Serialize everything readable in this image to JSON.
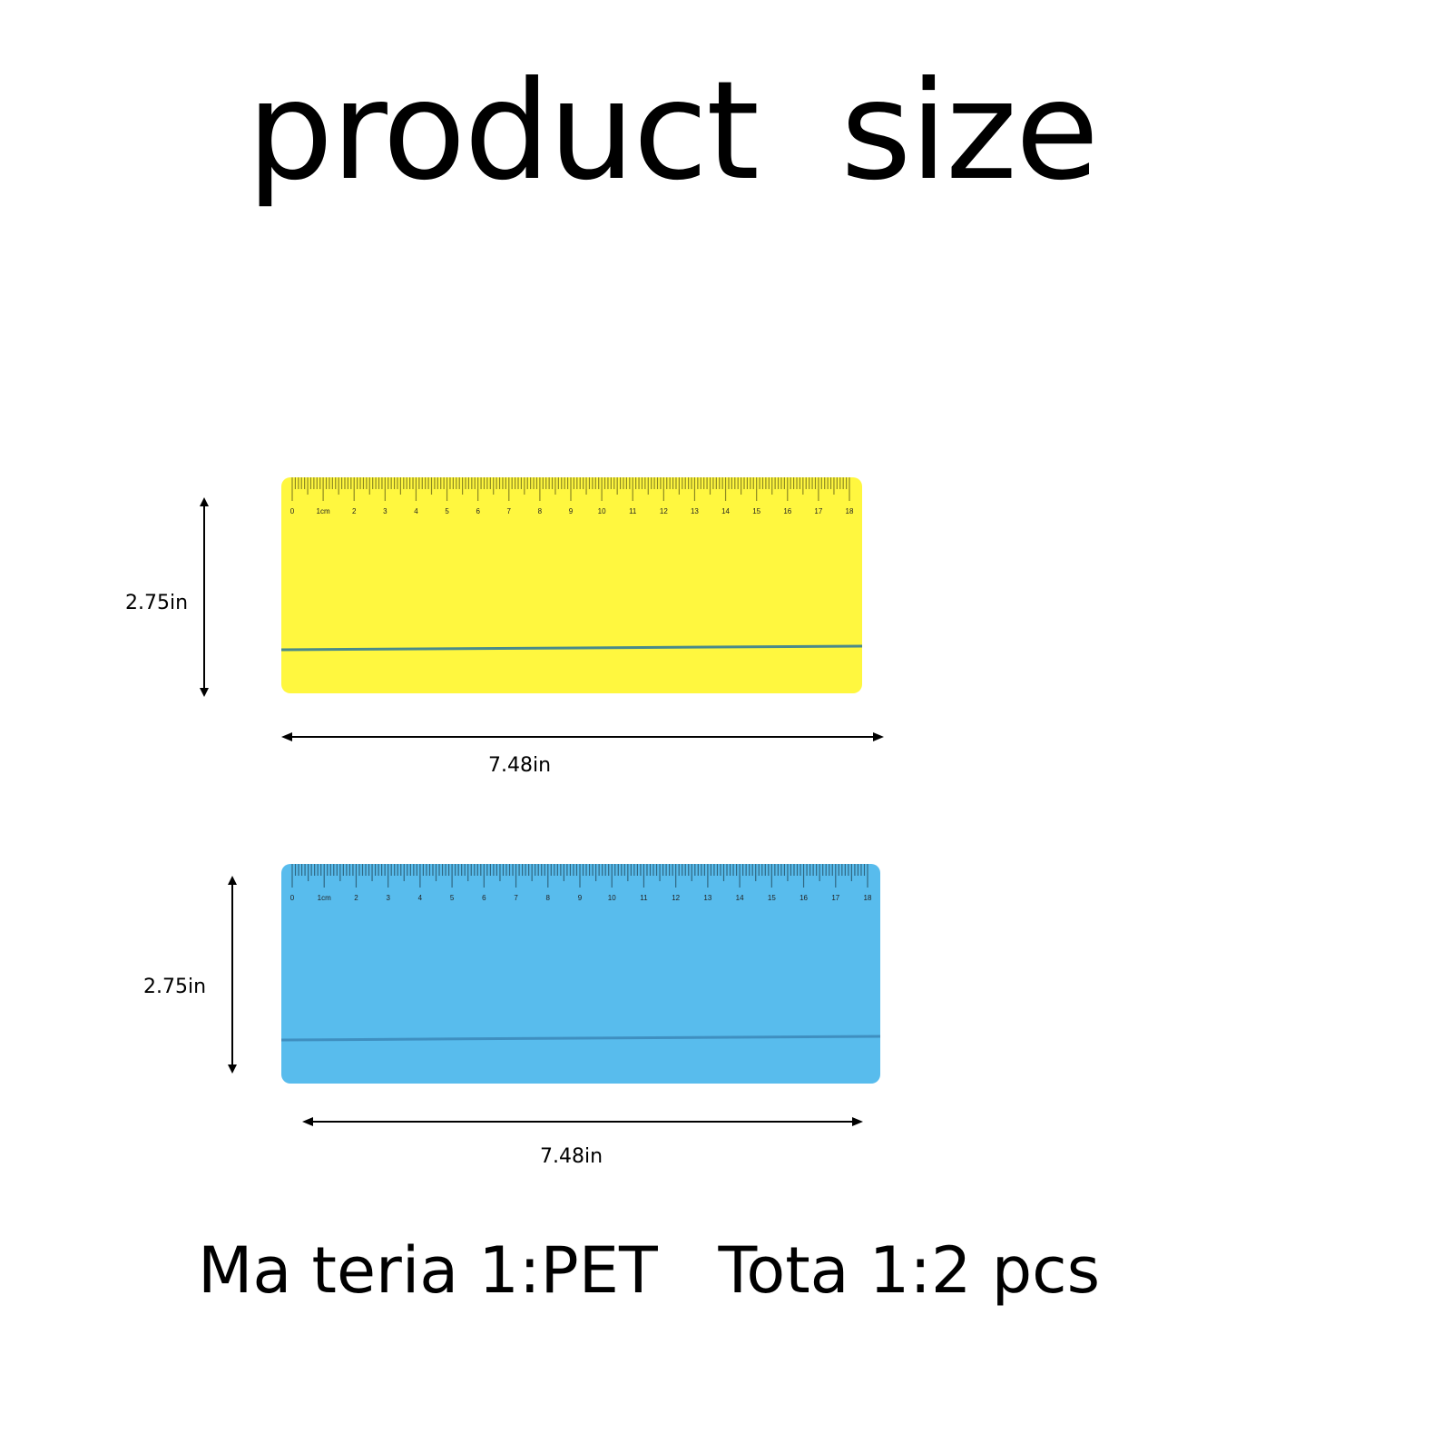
{
  "title": "product  size",
  "rulers": [
    {
      "color": "#fff73f",
      "edge_line_color": "#4a8a8a",
      "scale_labels": [
        "0",
        "1cm",
        "2",
        "3",
        "4",
        "5",
        "6",
        "7",
        "8",
        "9",
        "10",
        "11",
        "12",
        "13",
        "14",
        "15",
        "16",
        "17",
        "18"
      ],
      "height_label": "2.75in",
      "width_label": "7.48in"
    },
    {
      "color": "#58bced",
      "edge_line_color": "#3f8fc0",
      "scale_labels": [
        "0",
        "1cm",
        "2",
        "3",
        "4",
        "5",
        "6",
        "7",
        "8",
        "9",
        "10",
        "11",
        "12",
        "13",
        "14",
        "15",
        "16",
        "17",
        "18"
      ],
      "height_label": "2.75in",
      "width_label": "7.48in"
    }
  ],
  "footer": "Ma teria 1:PET   Tota 1:2 pcs"
}
